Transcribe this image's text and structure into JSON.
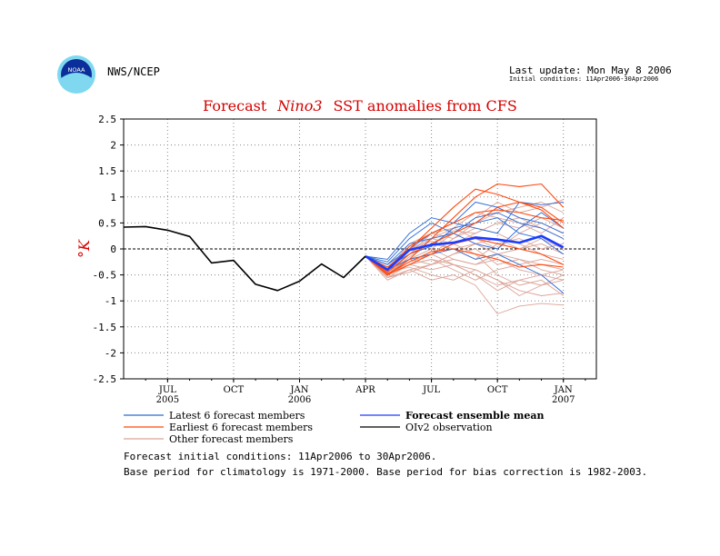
{
  "header": {
    "org_name": "NWS/NCEP",
    "last_update": "Last update: Mon May 8 2006",
    "initial_conditions": "Initial conditions: 11Apr2006-30Apr2006",
    "logo_text": "NOAA"
  },
  "footer": {
    "line1": "Forecast initial conditions: 11Apr2006 to 30Apr2006.",
    "line2": "Base period for climatology is 1971-2000. Base period for bias correction is 1982-2003."
  },
  "colors": {
    "latest": "#2a6ad8",
    "earliest": "#ff4a10",
    "other": "#dba498",
    "mean": "#1a3cff",
    "observation": "#000000",
    "title": "#d40000"
  },
  "chart_data": {
    "type": "line",
    "title_parts": [
      "Forecast",
      "Nino3",
      "SST anomalies from CFS"
    ],
    "ylabel": "°K",
    "ylim": [
      -2.5,
      2.5
    ],
    "yticks": [
      "2.5",
      "2",
      "1.5",
      "1",
      "0.5",
      "0",
      "-0.5",
      "-1",
      "-1.5",
      "-2",
      "-2.5"
    ],
    "xlim": [
      0,
      21.5
    ],
    "xticks": [
      {
        "x": 2,
        "label": "JUL",
        "sub": "2005"
      },
      {
        "x": 5,
        "label": "OCT",
        "sub": ""
      },
      {
        "x": 8,
        "label": "JAN",
        "sub": "2006"
      },
      {
        "x": 11,
        "label": "APR",
        "sub": ""
      },
      {
        "x": 14,
        "label": "JUL",
        "sub": ""
      },
      {
        "x": 17,
        "label": "OCT",
        "sub": ""
      },
      {
        "x": 20,
        "label": "JAN",
        "sub": "2007"
      }
    ],
    "grid": true,
    "legend": [
      {
        "label": "Latest 6 forecast members",
        "key": "latest",
        "bold": false
      },
      {
        "label": "Forecast ensemble mean",
        "key": "mean",
        "bold": true
      },
      {
        "label": "Earliest 6 forecast members",
        "key": "earliest",
        "bold": false
      },
      {
        "label": "OIv2 observation",
        "key": "observation",
        "bold": false
      },
      {
        "label": "Other forecast members",
        "key": "other",
        "bold": false
      }
    ],
    "observation": {
      "x": [
        0,
        1,
        2,
        3,
        4,
        5,
        6,
        7,
        8,
        9,
        10,
        11
      ],
      "y": [
        0.42,
        0.43,
        0.36,
        0.24,
        -0.27,
        -0.22,
        -0.68,
        -0.8,
        -0.62,
        -0.29,
        -0.55,
        -0.14
      ]
    },
    "ensemble_mean": {
      "x": [
        11,
        12,
        13,
        14,
        15,
        16,
        17,
        18,
        19,
        20
      ],
      "y": [
        -0.14,
        -0.4,
        -0.02,
        0.08,
        0.12,
        0.22,
        0.18,
        0.12,
        0.25,
        0.03
      ]
    },
    "forecast_x": [
      11,
      12,
      13,
      14,
      15,
      16,
      17,
      18,
      19,
      20
    ],
    "latest_members": [
      [
        -0.14,
        -0.2,
        0.3,
        0.6,
        0.5,
        0.4,
        0.3,
        0.9,
        0.85,
        0.9
      ],
      [
        -0.14,
        -0.3,
        0.1,
        0.2,
        0.3,
        0.1,
        0.0,
        0.4,
        0.7,
        0.4
      ],
      [
        -0.14,
        -0.35,
        -0.1,
        0.05,
        0.4,
        0.5,
        0.6,
        0.3,
        0.2,
        -0.1
      ],
      [
        -0.14,
        -0.25,
        0.2,
        0.5,
        0.3,
        0.6,
        0.7,
        0.5,
        0.4,
        0.2
      ],
      [
        -0.14,
        -0.4,
        -0.2,
        -0.1,
        0.0,
        -0.2,
        -0.1,
        -0.3,
        -0.5,
        -0.85
      ],
      [
        -0.14,
        -0.3,
        0.0,
        0.3,
        0.5,
        0.9,
        0.8,
        0.6,
        0.5,
        0.3
      ]
    ],
    "earliest_members": [
      [
        -0.14,
        -0.35,
        0.0,
        0.4,
        0.8,
        1.15,
        1.05,
        0.9,
        0.8,
        0.5
      ],
      [
        -0.14,
        -0.5,
        -0.2,
        0.2,
        0.6,
        1.0,
        1.25,
        1.2,
        1.25,
        0.8
      ],
      [
        -0.14,
        -0.45,
        -0.1,
        0.1,
        0.3,
        0.5,
        0.8,
        0.9,
        0.75,
        0.4
      ],
      [
        -0.14,
        -0.48,
        -0.25,
        -0.05,
        0.0,
        -0.1,
        -0.2,
        -0.35,
        -0.3,
        -0.35
      ],
      [
        -0.14,
        -0.42,
        0.05,
        0.3,
        0.5,
        0.7,
        0.75,
        0.7,
        0.6,
        0.55
      ],
      [
        -0.14,
        -0.5,
        -0.3,
        -0.1,
        0.1,
        0.2,
        0.1,
        0.0,
        -0.1,
        -0.3
      ]
    ],
    "other_members": [
      [
        -0.14,
        -0.6,
        -0.4,
        -0.6,
        -0.5,
        -0.7,
        -1.25,
        -1.1,
        -1.05,
        -1.08
      ],
      [
        -0.14,
        -0.55,
        -0.3,
        -0.2,
        -0.3,
        -0.4,
        -0.6,
        -0.8,
        -0.9,
        -0.85
      ],
      [
        -0.14,
        -0.5,
        -0.2,
        0.0,
        -0.2,
        -0.3,
        -0.2,
        -0.4,
        -0.5,
        -0.4
      ],
      [
        -0.14,
        -0.45,
        -0.1,
        0.1,
        0.0,
        0.1,
        0.2,
        0.0,
        0.1,
        -0.1
      ],
      [
        -0.14,
        -0.4,
        0.0,
        0.2,
        0.1,
        0.3,
        0.5,
        0.4,
        0.6,
        0.4
      ],
      [
        -0.14,
        -0.5,
        -0.3,
        -0.4,
        -0.3,
        -0.5,
        -0.7,
        -0.6,
        -0.5,
        -0.6
      ],
      [
        -0.14,
        -0.45,
        -0.2,
        -0.1,
        0.2,
        0.5,
        0.7,
        0.8,
        0.9,
        0.7
      ],
      [
        -0.14,
        -0.55,
        -0.4,
        -0.3,
        -0.1,
        0.0,
        -0.3,
        -0.2,
        -0.4,
        -0.5
      ],
      [
        -0.14,
        -0.5,
        -0.25,
        -0.1,
        0.1,
        -0.1,
        -0.5,
        -0.7,
        -0.6,
        -0.9
      ],
      [
        -0.14,
        -0.42,
        -0.1,
        0.3,
        0.4,
        0.2,
        0.0,
        0.3,
        0.5,
        0.3
      ],
      [
        -0.14,
        -0.48,
        -0.3,
        -0.2,
        -0.4,
        -0.6,
        -0.4,
        -0.3,
        -0.2,
        -0.3
      ],
      [
        -0.14,
        -0.4,
        0.1,
        0.3,
        0.2,
        0.4,
        0.3,
        0.1,
        -0.1,
        -0.2
      ],
      [
        -0.14,
        -0.52,
        -0.2,
        0.0,
        0.3,
        0.6,
        0.9,
        0.7,
        0.8,
        0.95
      ],
      [
        -0.14,
        -0.46,
        -0.35,
        -0.5,
        -0.6,
        -0.4,
        -0.6,
        -0.9,
        -0.7,
        -0.5
      ],
      [
        -0.14,
        -0.38,
        0.0,
        0.15,
        0.0,
        -0.2,
        0.1,
        0.2,
        0.0,
        0.1
      ],
      [
        -0.14,
        -0.5,
        -0.15,
        0.1,
        0.35,
        0.3,
        0.5,
        0.6,
        0.4,
        0.2
      ],
      [
        -0.14,
        -0.55,
        -0.45,
        -0.3,
        -0.2,
        -0.3,
        -0.1,
        -0.2,
        -0.3,
        -0.4
      ],
      [
        -0.14,
        -0.44,
        -0.2,
        -0.3,
        -0.1,
        0.1,
        -0.1,
        0.0,
        0.2,
        0.0
      ],
      [
        -0.14,
        -0.5,
        -0.1,
        0.2,
        0.4,
        0.7,
        0.6,
        0.5,
        0.3,
        0.6
      ],
      [
        -0.14,
        -0.47,
        -0.3,
        -0.1,
        -0.3,
        -0.5,
        -0.8,
        -0.6,
        -0.7,
        -0.6
      ]
    ]
  }
}
